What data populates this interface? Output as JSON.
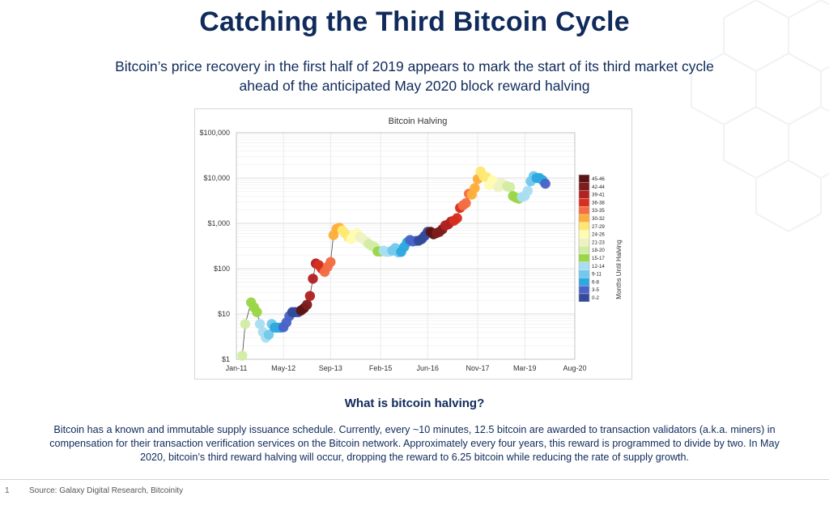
{
  "page": {
    "title": "Catching the Third Bitcoin Cycle",
    "subtitle": "Bitcoin’s price recovery in the first half of 2019 appears to mark the start of its third market cycle ahead of the anticipated May 2020 block reward halving",
    "section_heading": "What is bitcoin halving?",
    "body": "Bitcoin has a known and immutable supply issuance schedule. Currently, every ~10 minutes, 12.5 bitcoin are awarded to transaction validators (a.k.a. miners) in compensation for their transaction verification services on the Bitcoin network. Approximately every four years, this reward is programmed to divide by two. In May 2020, bitcoin’s third reward halving will occur, dropping the reward to 6.25 bitcoin while reducing the rate of supply growth.",
    "page_number": "1",
    "source": "Source: Galaxy Digital Research, Bitcoinity"
  },
  "chart_data": {
    "type": "scatter",
    "title": "Bitcoin Halving",
    "y_scale": "log",
    "ylim": [
      1,
      100000
    ],
    "y_ticks": [
      1,
      10,
      100,
      1000,
      10000,
      100000
    ],
    "y_tick_labels": [
      "$1",
      "$10",
      "$100",
      "$1,000",
      "$10,000",
      "$100,000"
    ],
    "xlim": [
      "2011-01",
      "2020-08"
    ],
    "x_ticks": [
      "2011-01",
      "2012-05",
      "2013-09",
      "2015-02",
      "2016-06",
      "2017-11",
      "2019-03",
      "2020-08"
    ],
    "x_tick_labels": [
      "Jan-11",
      "May-12",
      "Sep-13",
      "Feb-15",
      "Jun-16",
      "Nov-17",
      "Mar-19",
      "Aug-20"
    ],
    "grid": true,
    "legend": {
      "position": "right",
      "title": "Months Until Halving",
      "bins": [
        {
          "label": "45-46",
          "color": "#5b1414"
        },
        {
          "label": "42-44",
          "color": "#7e1d1d"
        },
        {
          "label": "39-41",
          "color": "#b22222"
        },
        {
          "label": "36-38",
          "color": "#d7301f"
        },
        {
          "label": "33-35",
          "color": "#f46d43"
        },
        {
          "label": "30-32",
          "color": "#fdae3a"
        },
        {
          "label": "27-29",
          "color": "#fee873"
        },
        {
          "label": "24-26",
          "color": "#fffbb0"
        },
        {
          "label": "21-23",
          "color": "#eef2c2"
        },
        {
          "label": "18-20",
          "color": "#d3eca4"
        },
        {
          "label": "15-17",
          "color": "#9bd646"
        },
        {
          "label": "12-14",
          "color": "#a9def2"
        },
        {
          "label": "9-11",
          "color": "#73c9ec"
        },
        {
          "label": "6-8",
          "color": "#2ea8e0"
        },
        {
          "label": "3-5",
          "color": "#4a63c8"
        },
        {
          "label": "0-2",
          "color": "#334a9a"
        }
      ]
    },
    "points": [
      {
        "d": "2011-03",
        "y": 1.2,
        "c": "#d3eca4"
      },
      {
        "d": "2011-04",
        "y": 6,
        "c": "#d3eca4"
      },
      {
        "d": "2011-06",
        "y": 18,
        "c": "#9bd646"
      },
      {
        "d": "2011-07",
        "y": 14,
        "c": "#9bd646"
      },
      {
        "d": "2011-08",
        "y": 11,
        "c": "#9bd646"
      },
      {
        "d": "2011-09",
        "y": 6,
        "c": "#a9def2"
      },
      {
        "d": "2011-10",
        "y": 4,
        "c": "#a9def2"
      },
      {
        "d": "2011-11",
        "y": 3,
        "c": "#a9def2"
      },
      {
        "d": "2011-12",
        "y": 3.5,
        "c": "#73c9ec"
      },
      {
        "d": "2012-01",
        "y": 6,
        "c": "#73c9ec"
      },
      {
        "d": "2012-02",
        "y": 5,
        "c": "#2ea8e0"
      },
      {
        "d": "2012-03",
        "y": 5,
        "c": "#2ea8e0"
      },
      {
        "d": "2012-04",
        "y": 5,
        "c": "#2ea8e0"
      },
      {
        "d": "2012-05",
        "y": 5.1,
        "c": "#4a63c8"
      },
      {
        "d": "2012-06",
        "y": 6.5,
        "c": "#4a63c8"
      },
      {
        "d": "2012-07",
        "y": 9,
        "c": "#4a63c8"
      },
      {
        "d": "2012-08",
        "y": 11,
        "c": "#334a9a"
      },
      {
        "d": "2012-09",
        "y": 11,
        "c": "#334a9a"
      },
      {
        "d": "2012-10",
        "y": 11,
        "c": "#334a9a"
      },
      {
        "d": "2012-11",
        "y": 12,
        "c": "#5b1414"
      },
      {
        "d": "2012-12",
        "y": 13.5,
        "c": "#5b1414"
      },
      {
        "d": "2013-01",
        "y": 16,
        "c": "#7e1d1d"
      },
      {
        "d": "2013-02",
        "y": 25,
        "c": "#b22222"
      },
      {
        "d": "2013-03",
        "y": 60,
        "c": "#b22222"
      },
      {
        "d": "2013-04",
        "y": 130,
        "c": "#b22222"
      },
      {
        "d": "2013-05",
        "y": 120,
        "c": "#d7301f"
      },
      {
        "d": "2013-06",
        "y": 100,
        "c": "#d7301f"
      },
      {
        "d": "2013-07",
        "y": 85,
        "c": "#f46d43"
      },
      {
        "d": "2013-08",
        "y": 110,
        "c": "#f46d43"
      },
      {
        "d": "2013-09",
        "y": 140,
        "c": "#f46d43"
      },
      {
        "d": "2013-10",
        "y": 550,
        "c": "#fdae3a"
      },
      {
        "d": "2013-11",
        "y": 750,
        "c": "#fdae3a"
      },
      {
        "d": "2013-12",
        "y": 800,
        "c": "#fdae3a"
      },
      {
        "d": "2014-01",
        "y": 700,
        "c": "#fee873"
      },
      {
        "d": "2014-02",
        "y": 600,
        "c": "#fee873"
      },
      {
        "d": "2014-03",
        "y": 500,
        "c": "#fee873"
      },
      {
        "d": "2014-04",
        "y": 450,
        "c": "#fffbb0"
      },
      {
        "d": "2014-05",
        "y": 550,
        "c": "#fffbb0"
      },
      {
        "d": "2014-06",
        "y": 600,
        "c": "#fffbb0"
      },
      {
        "d": "2014-07",
        "y": 500,
        "c": "#eef2c2"
      },
      {
        "d": "2014-08",
        "y": 450,
        "c": "#eef2c2"
      },
      {
        "d": "2014-09",
        "y": 400,
        "c": "#eef2c2"
      },
      {
        "d": "2014-10",
        "y": 350,
        "c": "#d3eca4"
      },
      {
        "d": "2014-11",
        "y": 320,
        "c": "#d3eca4"
      },
      {
        "d": "2014-12",
        "y": 300,
        "c": "#d3eca4"
      },
      {
        "d": "2015-01",
        "y": 240,
        "c": "#9bd646"
      },
      {
        "d": "2015-02",
        "y": 240,
        "c": "#9bd646"
      },
      {
        "d": "2015-03",
        "y": 250,
        "c": "#a9def2"
      },
      {
        "d": "2015-04",
        "y": 235,
        "c": "#a9def2"
      },
      {
        "d": "2015-05",
        "y": 237,
        "c": "#a9def2"
      },
      {
        "d": "2015-06",
        "y": 250,
        "c": "#73c9ec"
      },
      {
        "d": "2015-07",
        "y": 285,
        "c": "#73c9ec"
      },
      {
        "d": "2015-08",
        "y": 230,
        "c": "#73c9ec"
      },
      {
        "d": "2015-09",
        "y": 235,
        "c": "#2ea8e0"
      },
      {
        "d": "2015-10",
        "y": 300,
        "c": "#2ea8e0"
      },
      {
        "d": "2015-11",
        "y": 380,
        "c": "#2ea8e0"
      },
      {
        "d": "2015-12",
        "y": 430,
        "c": "#4a63c8"
      },
      {
        "d": "2016-01",
        "y": 400,
        "c": "#4a63c8"
      },
      {
        "d": "2016-02",
        "y": 410,
        "c": "#4a63c8"
      },
      {
        "d": "2016-03",
        "y": 415,
        "c": "#334a9a"
      },
      {
        "d": "2016-04",
        "y": 450,
        "c": "#334a9a"
      },
      {
        "d": "2016-05",
        "y": 530,
        "c": "#334a9a"
      },
      {
        "d": "2016-06",
        "y": 650,
        "c": "#334a9a"
      },
      {
        "d": "2016-07",
        "y": 650,
        "c": "#5b1414"
      },
      {
        "d": "2016-08",
        "y": 575,
        "c": "#5b1414"
      },
      {
        "d": "2016-09",
        "y": 610,
        "c": "#7e1d1d"
      },
      {
        "d": "2016-10",
        "y": 650,
        "c": "#7e1d1d"
      },
      {
        "d": "2016-11",
        "y": 740,
        "c": "#7e1d1d"
      },
      {
        "d": "2016-12",
        "y": 900,
        "c": "#b22222"
      },
      {
        "d": "2017-01",
        "y": 950,
        "c": "#b22222"
      },
      {
        "d": "2017-02",
        "y": 1100,
        "c": "#b22222"
      },
      {
        "d": "2017-03",
        "y": 1150,
        "c": "#d7301f"
      },
      {
        "d": "2017-04",
        "y": 1300,
        "c": "#d7301f"
      },
      {
        "d": "2017-05",
        "y": 2200,
        "c": "#d7301f"
      },
      {
        "d": "2017-06",
        "y": 2500,
        "c": "#f46d43"
      },
      {
        "d": "2017-07",
        "y": 2800,
        "c": "#f46d43"
      },
      {
        "d": "2017-08",
        "y": 4500,
        "c": "#f46d43"
      },
      {
        "d": "2017-09",
        "y": 4300,
        "c": "#fdae3a"
      },
      {
        "d": "2017-10",
        "y": 6000,
        "c": "#fdae3a"
      },
      {
        "d": "2017-11",
        "y": 9500,
        "c": "#fdae3a"
      },
      {
        "d": "2017-12",
        "y": 14000,
        "c": "#fee873"
      },
      {
        "d": "2018-01",
        "y": 11000,
        "c": "#fee873"
      },
      {
        "d": "2018-02",
        "y": 10500,
        "c": "#fee873"
      },
      {
        "d": "2018-03",
        "y": 7000,
        "c": "#fffbb0"
      },
      {
        "d": "2018-04",
        "y": 9000,
        "c": "#fffbb0"
      },
      {
        "d": "2018-05",
        "y": 7500,
        "c": "#fffbb0"
      },
      {
        "d": "2018-06",
        "y": 6300,
        "c": "#eef2c2"
      },
      {
        "d": "2018-07",
        "y": 7700,
        "c": "#eef2c2"
      },
      {
        "d": "2018-08",
        "y": 7000,
        "c": "#eef2c2"
      },
      {
        "d": "2018-09",
        "y": 6600,
        "c": "#d3eca4"
      },
      {
        "d": "2018-10",
        "y": 6300,
        "c": "#d3eca4"
      },
      {
        "d": "2018-11",
        "y": 4000,
        "c": "#9bd646"
      },
      {
        "d": "2018-12",
        "y": 3700,
        "c": "#9bd646"
      },
      {
        "d": "2019-01",
        "y": 3500,
        "c": "#9bd646"
      },
      {
        "d": "2019-02",
        "y": 3800,
        "c": "#a9def2"
      },
      {
        "d": "2019-03",
        "y": 4000,
        "c": "#a9def2"
      },
      {
        "d": "2019-04",
        "y": 5200,
        "c": "#a9def2"
      },
      {
        "d": "2019-05",
        "y": 8500,
        "c": "#73c9ec"
      },
      {
        "d": "2019-06",
        "y": 11000,
        "c": "#73c9ec"
      },
      {
        "d": "2019-07",
        "y": 10000,
        "c": "#2ea8e0"
      },
      {
        "d": "2019-08",
        "y": 10000,
        "c": "#2ea8e0"
      },
      {
        "d": "2019-09",
        "y": 9000,
        "c": "#2ea8e0"
      },
      {
        "d": "2019-10",
        "y": 7500,
        "c": "#4a63c8"
      }
    ]
  }
}
